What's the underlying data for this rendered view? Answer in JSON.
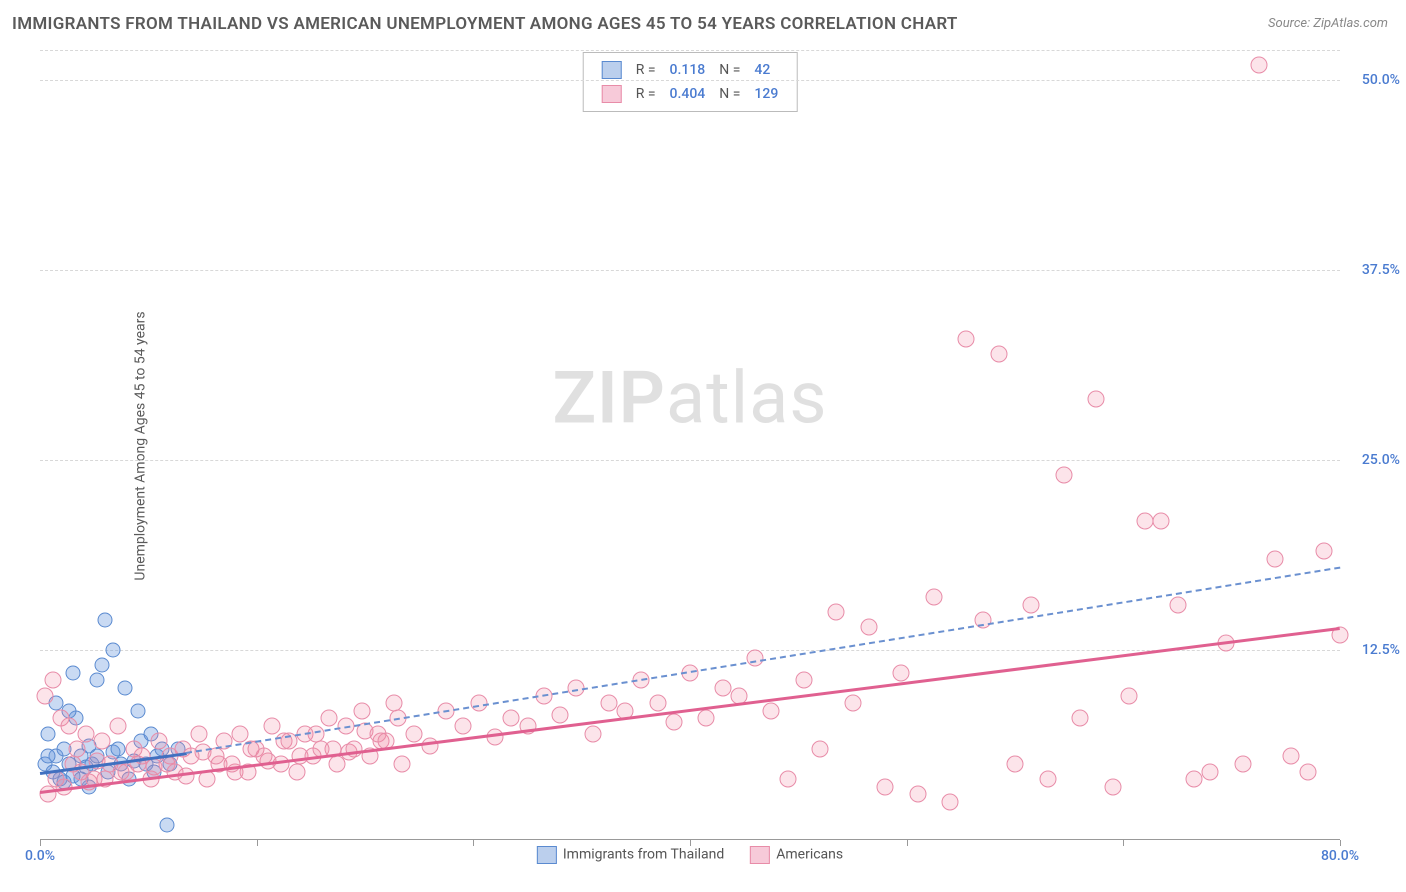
{
  "title": "IMMIGRANTS FROM THAILAND VS AMERICAN UNEMPLOYMENT AMONG AGES 45 TO 54 YEARS CORRELATION CHART",
  "source": "Source: ZipAtlas.com",
  "ylabel": "Unemployment Among Ages 45 to 54 years",
  "watermark_bold": "ZIP",
  "watermark_light": "atlas",
  "chart": {
    "type": "scatter",
    "xlim": [
      0,
      80
    ],
    "ylim": [
      0,
      52
    ],
    "ytick_labels": [
      "12.5%",
      "25.0%",
      "37.5%",
      "50.0%"
    ],
    "ytick_values": [
      12.5,
      25.0,
      37.5,
      50.0
    ],
    "xtick_values": [
      0,
      13.33,
      26.67,
      40,
      53.33,
      66.67,
      80
    ],
    "xaxis_label_left": "0.0%",
    "xaxis_label_right": "80.0%",
    "background_color": "#ffffff",
    "grid_color": "#d8d8d8",
    "series": [
      {
        "name": "Immigrants from Thailand",
        "color_fill": "rgba(100,150,220,0.35)",
        "color_stroke": "#5a8ad0",
        "marker_size": 15,
        "R": "0.118",
        "N": "42",
        "trend": {
          "x1": 0,
          "y1": 4.5,
          "x2": 9,
          "y2": 5.8,
          "style": "solid",
          "color": "#4070c0",
          "width": 2.5
        },
        "trend_dash": {
          "x1": 9,
          "y1": 5.8,
          "x2": 80,
          "y2": 18,
          "style": "dashed",
          "color": "#6a90d0",
          "width": 2
        },
        "points": [
          [
            0.3,
            5
          ],
          [
            0.5,
            7
          ],
          [
            0.8,
            4.5
          ],
          [
            1,
            5.5
          ],
          [
            1.2,
            4
          ],
          [
            1.5,
            6
          ],
          [
            1.8,
            5
          ],
          [
            2,
            4.2
          ],
          [
            2.2,
            8
          ],
          [
            2.5,
            5.5
          ],
          [
            2.8,
            4.8
          ],
          [
            3,
            6.2
          ],
          [
            3.2,
            5
          ],
          [
            3.5,
            10.5
          ],
          [
            3.8,
            11.5
          ],
          [
            4,
            14.5
          ],
          [
            4.2,
            4.5
          ],
          [
            4.5,
            5.8
          ],
          [
            4.8,
            6
          ],
          [
            5,
            5
          ],
          [
            5.2,
            10
          ],
          [
            5.5,
            4
          ],
          [
            5.8,
            5.2
          ],
          [
            6,
            8.5
          ],
          [
            6.2,
            6.5
          ],
          [
            6.5,
            5
          ],
          [
            6.8,
            7
          ],
          [
            7,
            4.5
          ],
          [
            7.2,
            5.5
          ],
          [
            7.5,
            6
          ],
          [
            1,
            9
          ],
          [
            1.5,
            3.8
          ],
          [
            2,
            11
          ],
          [
            0.5,
            5.5
          ],
          [
            3,
            3.5
          ],
          [
            4.5,
            12.5
          ],
          [
            8,
            5
          ],
          [
            8.5,
            6
          ],
          [
            7.8,
            1
          ],
          [
            1.8,
            8.5
          ],
          [
            2.5,
            4
          ],
          [
            3.5,
            5.5
          ]
        ]
      },
      {
        "name": "Americans",
        "color_fill": "rgba(240,130,160,0.22)",
        "color_stroke": "#e88ca8",
        "marker_size": 17,
        "R": "0.404",
        "N": "129",
        "trend": {
          "x1": 0,
          "y1": 3.2,
          "x2": 80,
          "y2": 14,
          "style": "solid",
          "color": "#e06090",
          "width": 3
        },
        "points": [
          [
            0.5,
            3
          ],
          [
            1,
            4
          ],
          [
            1.5,
            3.5
          ],
          [
            2,
            5
          ],
          [
            2.5,
            4.5
          ],
          [
            3,
            3.8
          ],
          [
            3.5,
            5.2
          ],
          [
            4,
            4
          ],
          [
            5,
            4.5
          ],
          [
            6,
            5
          ],
          [
            7,
            4.8
          ],
          [
            8,
            5.5
          ],
          [
            9,
            4.2
          ],
          [
            10,
            5.8
          ],
          [
            11,
            5
          ],
          [
            12,
            4.5
          ],
          [
            13,
            6
          ],
          [
            14,
            5.2
          ],
          [
            15,
            6.5
          ],
          [
            16,
            5.5
          ],
          [
            17,
            7
          ],
          [
            18,
            6
          ],
          [
            19,
            5.8
          ],
          [
            20,
            7.2
          ],
          [
            21,
            6.5
          ],
          [
            22,
            8
          ],
          [
            23,
            7
          ],
          [
            24,
            6.2
          ],
          [
            25,
            8.5
          ],
          [
            26,
            7.5
          ],
          [
            27,
            9
          ],
          [
            28,
            6.8
          ],
          [
            29,
            8
          ],
          [
            30,
            7.5
          ],
          [
            31,
            9.5
          ],
          [
            32,
            8.2
          ],
          [
            33,
            10
          ],
          [
            34,
            7
          ],
          [
            35,
            9
          ],
          [
            36,
            8.5
          ],
          [
            37,
            10.5
          ],
          [
            38,
            9
          ],
          [
            39,
            7.8
          ],
          [
            40,
            11
          ],
          [
            41,
            8
          ],
          [
            42,
            10
          ],
          [
            43,
            9.5
          ],
          [
            44,
            12
          ],
          [
            45,
            8.5
          ],
          [
            46,
            4
          ],
          [
            47,
            10.5
          ],
          [
            48,
            6
          ],
          [
            49,
            15
          ],
          [
            50,
            9
          ],
          [
            51,
            14
          ],
          [
            52,
            3.5
          ],
          [
            53,
            11
          ],
          [
            54,
            3
          ],
          [
            55,
            16
          ],
          [
            56,
            2.5
          ],
          [
            57,
            33
          ],
          [
            58,
            14.5
          ],
          [
            59,
            32
          ],
          [
            60,
            5
          ],
          [
            61,
            15.5
          ],
          [
            62,
            4
          ],
          [
            63,
            24
          ],
          [
            64,
            8
          ],
          [
            65,
            29
          ],
          [
            66,
            3.5
          ],
          [
            67,
            9.5
          ],
          [
            68,
            21
          ],
          [
            69,
            21
          ],
          [
            70,
            15.5
          ],
          [
            71,
            4
          ],
          [
            72,
            4.5
          ],
          [
            73,
            13
          ],
          [
            74,
            5
          ],
          [
            75,
            51
          ],
          [
            76,
            18.5
          ],
          [
            77,
            5.5
          ],
          [
            78,
            4.5
          ],
          [
            79,
            19
          ],
          [
            80,
            13.5
          ],
          [
            0.3,
            9.5
          ],
          [
            0.8,
            10.5
          ],
          [
            1.3,
            8
          ],
          [
            1.8,
            7.5
          ],
          [
            2.3,
            6
          ],
          [
            2.8,
            7
          ],
          [
            3.3,
            4
          ],
          [
            3.8,
            6.5
          ],
          [
            4.3,
            5
          ],
          [
            4.8,
            7.5
          ],
          [
            5.3,
            4.5
          ],
          [
            5.8,
            6
          ],
          [
            6.3,
            5.5
          ],
          [
            6.8,
            4
          ],
          [
            7.3,
            6.5
          ],
          [
            7.8,
            5
          ],
          [
            8.3,
            4.5
          ],
          [
            8.8,
            6
          ],
          [
            9.3,
            5.5
          ],
          [
            9.8,
            7
          ],
          [
            10.3,
            4
          ],
          [
            10.8,
            5.5
          ],
          [
            11.3,
            6.5
          ],
          [
            11.8,
            5
          ],
          [
            12.3,
            7
          ],
          [
            12.8,
            4.5
          ],
          [
            13.3,
            6
          ],
          [
            13.8,
            5.5
          ],
          [
            14.3,
            7.5
          ],
          [
            14.8,
            5
          ],
          [
            15.3,
            6.5
          ],
          [
            15.8,
            4.5
          ],
          [
            16.3,
            7
          ],
          [
            16.8,
            5.5
          ],
          [
            17.3,
            6
          ],
          [
            17.8,
            8
          ],
          [
            18.3,
            5
          ],
          [
            18.8,
            7.5
          ],
          [
            19.3,
            6
          ],
          [
            19.8,
            8.5
          ],
          [
            20.3,
            5.5
          ],
          [
            20.8,
            7
          ],
          [
            21.3,
            6.5
          ],
          [
            21.8,
            9
          ],
          [
            22.3,
            5
          ]
        ]
      }
    ],
    "legend_bottom": [
      {
        "label": "Immigrants from Thailand",
        "swatch": "blue"
      },
      {
        "label": "Americans",
        "swatch": "pink"
      }
    ]
  }
}
